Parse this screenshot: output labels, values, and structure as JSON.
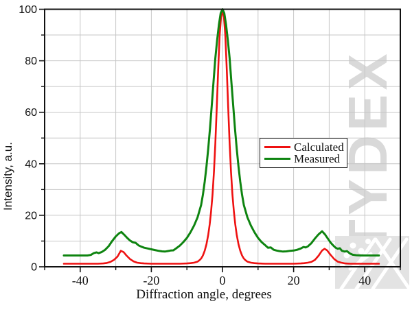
{
  "watermark": {
    "text": "TYDEX",
    "color": "#d9d9d9"
  },
  "logo": {
    "name": "tydex-snowflake-logo",
    "background": "#e3e3e3",
    "pattern_color": "#ffffff"
  },
  "axes": {
    "frame_color": "#111111",
    "grid_color": "#c6c6c6",
    "tick_label_color": "#111111"
  },
  "chart_data": {
    "type": "line",
    "title": "",
    "xlabel": "Diffraction angle, degrees",
    "ylabel": "Intensity, a.u.",
    "xlim": [
      -50,
      50
    ],
    "ylim": [
      0,
      100
    ],
    "grid": true,
    "grid_step": 10,
    "x_ticks": {
      "major": [
        -40,
        -20,
        0,
        20,
        40
      ],
      "labels": [
        "-40",
        "-20",
        "0",
        "20",
        "40"
      ],
      "minor": [
        -50,
        -30,
        -10,
        10,
        30,
        50
      ]
    },
    "y_ticks": {
      "major": [
        0,
        20,
        40,
        60,
        80,
        100
      ],
      "labels": [
        "0",
        "20",
        "40",
        "60",
        "80",
        "100"
      ],
      "minor": [
        10,
        30,
        50,
        70,
        90
      ]
    },
    "legend": {
      "position": "center-right",
      "items": [
        "Calculated",
        "Measured"
      ]
    },
    "series": [
      {
        "name": "Calculated",
        "color": "#ee1111",
        "width": 2.6,
        "points": [
          [
            -44.6,
            1.2
          ],
          [
            -41,
            1.2
          ],
          [
            -38,
            1.2
          ],
          [
            -35,
            1.2
          ],
          [
            -33.5,
            1.3
          ],
          [
            -32.5,
            1.5
          ],
          [
            -31.5,
            1.9
          ],
          [
            -30.5,
            2.7
          ],
          [
            -29.5,
            4
          ],
          [
            -28.6,
            6.2
          ],
          [
            -27.8,
            5.7
          ],
          [
            -27,
            4.4
          ],
          [
            -26,
            3
          ],
          [
            -25,
            2.1
          ],
          [
            -24,
            1.6
          ],
          [
            -23,
            1.4
          ],
          [
            -22,
            1.3
          ],
          [
            -20,
            1.2
          ],
          [
            -17,
            1.2
          ],
          [
            -14,
            1.2
          ],
          [
            -12,
            1.2
          ],
          [
            -10,
            1.3
          ],
          [
            -9,
            1.4
          ],
          [
            -8,
            1.6
          ],
          [
            -7,
            2
          ],
          [
            -6.5,
            2.5
          ],
          [
            -6,
            3.2
          ],
          [
            -5.5,
            4.4
          ],
          [
            -5,
            6.2
          ],
          [
            -4.5,
            8.8
          ],
          [
            -4,
            12.5
          ],
          [
            -3.6,
            16.5
          ],
          [
            -3.2,
            21.5
          ],
          [
            -2.8,
            28
          ],
          [
            -2.4,
            37
          ],
          [
            -2,
            48
          ],
          [
            -1.6,
            62
          ],
          [
            -1.2,
            77
          ],
          [
            -0.8,
            90
          ],
          [
            -0.4,
            97
          ],
          [
            0,
            99.5
          ],
          [
            0.4,
            97
          ],
          [
            0.8,
            90
          ],
          [
            1.2,
            77
          ],
          [
            1.6,
            62
          ],
          [
            2,
            48
          ],
          [
            2.4,
            37
          ],
          [
            2.8,
            28
          ],
          [
            3.2,
            21.5
          ],
          [
            3.6,
            16.5
          ],
          [
            4,
            12.5
          ],
          [
            4.5,
            8.8
          ],
          [
            5,
            6.2
          ],
          [
            5.5,
            4.4
          ],
          [
            6,
            3.2
          ],
          [
            6.5,
            2.5
          ],
          [
            7,
            2
          ],
          [
            8,
            1.6
          ],
          [
            9,
            1.4
          ],
          [
            10,
            1.3
          ],
          [
            12,
            1.2
          ],
          [
            14,
            1.2
          ],
          [
            17,
            1.2
          ],
          [
            20,
            1.2
          ],
          [
            22,
            1.3
          ],
          [
            23,
            1.4
          ],
          [
            24,
            1.6
          ],
          [
            25,
            1.9
          ],
          [
            26,
            2.7
          ],
          [
            27,
            4.3
          ],
          [
            28,
            6.3
          ],
          [
            28.7,
            7
          ],
          [
            29.4,
            6.4
          ],
          [
            30.4,
            4.6
          ],
          [
            31.4,
            3
          ],
          [
            32.4,
            2
          ],
          [
            33.4,
            1.6
          ],
          [
            34.5,
            1.3
          ],
          [
            36,
            1.2
          ],
          [
            39,
            1.2
          ],
          [
            42,
            1.2
          ],
          [
            44,
            1.2
          ]
        ]
      },
      {
        "name": "Measured",
        "color": "#0e8410",
        "width": 3,
        "points": [
          [
            -44.6,
            4.4
          ],
          [
            -42,
            4.4
          ],
          [
            -40,
            4.4
          ],
          [
            -38,
            4.4
          ],
          [
            -37,
            4.6
          ],
          [
            -36.2,
            5.3
          ],
          [
            -35.4,
            5.6
          ],
          [
            -34.8,
            5.3
          ],
          [
            -34,
            5.7
          ],
          [
            -33,
            6.6
          ],
          [
            -32,
            8
          ],
          [
            -31,
            10
          ],
          [
            -30,
            11.8
          ],
          [
            -29,
            13.1
          ],
          [
            -28.4,
            13.5
          ],
          [
            -27.6,
            12.4
          ],
          [
            -26.8,
            11.2
          ],
          [
            -26,
            10.2
          ],
          [
            -25.2,
            9.5
          ],
          [
            -24.4,
            9.3
          ],
          [
            -23.6,
            8.3
          ],
          [
            -22.8,
            7.8
          ],
          [
            -22,
            7.4
          ],
          [
            -21,
            7.1
          ],
          [
            -20,
            6.8
          ],
          [
            -19,
            6.5
          ],
          [
            -18,
            6.2
          ],
          [
            -17,
            6
          ],
          [
            -16.2,
            5.9
          ],
          [
            -15.4,
            6.1
          ],
          [
            -14.6,
            6.3
          ],
          [
            -13.8,
            6.4
          ],
          [
            -13,
            7.2
          ],
          [
            -12,
            8.2
          ],
          [
            -11,
            9.6
          ],
          [
            -10,
            11.2
          ],
          [
            -9,
            13.4
          ],
          [
            -8,
            16
          ],
          [
            -7,
            19.2
          ],
          [
            -6,
            24
          ],
          [
            -5.5,
            28
          ],
          [
            -5,
            33
          ],
          [
            -4.5,
            39
          ],
          [
            -4,
            46
          ],
          [
            -3.5,
            54
          ],
          [
            -3,
            63
          ],
          [
            -2.5,
            72
          ],
          [
            -2,
            81
          ],
          [
            -1.5,
            88
          ],
          [
            -1,
            94
          ],
          [
            -0.5,
            98.5
          ],
          [
            0,
            100
          ],
          [
            0.5,
            98.5
          ],
          [
            1,
            94
          ],
          [
            1.5,
            88
          ],
          [
            2,
            81
          ],
          [
            2.5,
            72
          ],
          [
            3,
            63
          ],
          [
            3.5,
            54
          ],
          [
            4,
            46
          ],
          [
            4.5,
            39
          ],
          [
            5,
            33
          ],
          [
            5.5,
            28
          ],
          [
            6,
            24
          ],
          [
            7,
            19.2
          ],
          [
            8,
            16
          ],
          [
            9,
            13.4
          ],
          [
            10,
            11.2
          ],
          [
            11,
            9.6
          ],
          [
            12,
            8.4
          ],
          [
            12.8,
            7.4
          ],
          [
            13.6,
            7.5
          ],
          [
            14.4,
            6.6
          ],
          [
            15.2,
            6.3
          ],
          [
            16,
            6.1
          ],
          [
            17,
            5.9
          ],
          [
            18,
            6
          ],
          [
            19,
            6.2
          ],
          [
            20,
            6.3
          ],
          [
            21,
            6.6
          ],
          [
            22,
            7.1
          ],
          [
            22.8,
            7.7
          ],
          [
            23.4,
            7.5
          ],
          [
            24,
            7.9
          ],
          [
            25,
            9.2
          ],
          [
            26,
            11
          ],
          [
            27,
            12.6
          ],
          [
            28,
            13.8
          ],
          [
            28.8,
            12.6
          ],
          [
            29.6,
            11
          ],
          [
            30.4,
            9.4
          ],
          [
            31.2,
            8.2
          ],
          [
            31.8,
            7.4
          ],
          [
            32.4,
            7
          ],
          [
            33,
            7.2
          ],
          [
            33.6,
            6.2
          ],
          [
            34.4,
            5.9
          ],
          [
            35,
            6.1
          ],
          [
            35.8,
            5.2
          ],
          [
            36.6,
            4.7
          ],
          [
            37.6,
            4.5
          ],
          [
            39,
            4.4
          ],
          [
            41,
            4.4
          ],
          [
            44,
            4.4
          ]
        ]
      }
    ]
  }
}
